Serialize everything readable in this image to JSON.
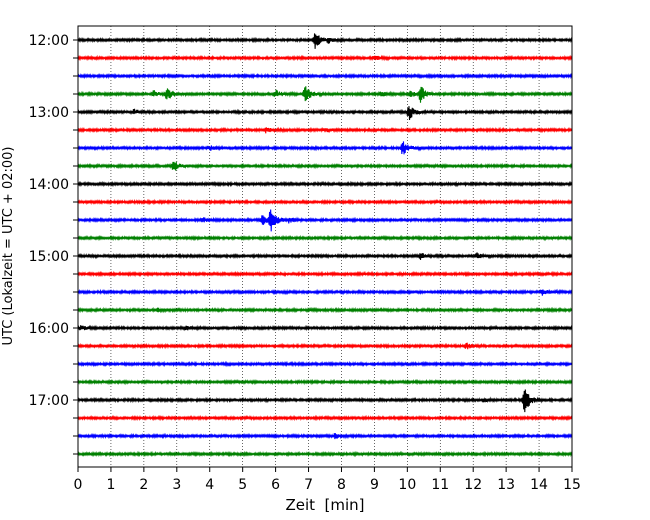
{
  "chart_data": {
    "type": "line",
    "title": "",
    "xlabel": "Zeit  [min]",
    "ylabel": "UTC (Lokalzeit = UTC + 02:00)",
    "xlim": [
      0,
      15
    ],
    "x_ticks": [
      "0",
      "1",
      "2",
      "3",
      "4",
      "5",
      "6",
      "7",
      "8",
      "9",
      "10",
      "11",
      "12",
      "13",
      "14",
      "15"
    ],
    "y_tick_labels": [
      "12:00",
      "13:00",
      "14:00",
      "15:00",
      "16:00",
      "17:00"
    ],
    "grid": "vertical dotted",
    "trace_colors": [
      "#000000",
      "#ff0000",
      "#0000ff",
      "#008000"
    ],
    "trace_start_times": [
      "12:00",
      "12:15",
      "12:30",
      "12:45",
      "13:00",
      "13:15",
      "13:30",
      "13:45",
      "14:00",
      "14:15",
      "14:30",
      "14:45",
      "15:00",
      "15:15",
      "15:30",
      "15:45",
      "16:00",
      "16:15",
      "16:30",
      "16:45",
      "17:00",
      "17:15",
      "17:30",
      "17:45"
    ],
    "series": [
      {
        "start": "12:00",
        "events": [
          {
            "t": 7.2,
            "amp": 1.0
          },
          {
            "t": 7.6,
            "amp": 0.3
          }
        ]
      },
      {
        "start": "12:15",
        "events": [
          {
            "t": 9.0,
            "amp": 0.25
          }
        ]
      },
      {
        "start": "12:30",
        "events": []
      },
      {
        "start": "12:45",
        "events": [
          {
            "t": 2.3,
            "amp": 0.4
          },
          {
            "t": 2.7,
            "amp": 0.9
          },
          {
            "t": 6.0,
            "amp": 0.5
          },
          {
            "t": 6.9,
            "amp": 1.0
          },
          {
            "t": 9.2,
            "amp": 0.3
          },
          {
            "t": 10.1,
            "amp": 0.4
          },
          {
            "t": 10.4,
            "amp": 1.0
          }
        ]
      },
      {
        "start": "13:00",
        "events": [
          {
            "t": 1.7,
            "amp": 0.3
          },
          {
            "t": 10.05,
            "amp": 1.0
          }
        ]
      },
      {
        "start": "13:15",
        "events": [
          {
            "t": 5.7,
            "amp": 0.3
          },
          {
            "t": 7.5,
            "amp": 0.3
          }
        ]
      },
      {
        "start": "13:30",
        "events": [
          {
            "t": 4.0,
            "amp": 0.3
          },
          {
            "t": 9.85,
            "amp": 1.0
          }
        ]
      },
      {
        "start": "13:45",
        "events": [
          {
            "t": 2.9,
            "amp": 0.7
          }
        ]
      },
      {
        "start": "14:00",
        "events": []
      },
      {
        "start": "14:15",
        "events": []
      },
      {
        "start": "14:30",
        "events": [
          {
            "t": 3.8,
            "amp": 0.25
          },
          {
            "t": 5.6,
            "amp": 0.6
          },
          {
            "t": 5.85,
            "amp": 1.6
          },
          {
            "t": 6.4,
            "amp": 0.3
          }
        ]
      },
      {
        "start": "14:45",
        "events": []
      },
      {
        "start": "15:00",
        "events": [
          {
            "t": 10.4,
            "amp": 0.4
          },
          {
            "t": 12.1,
            "amp": 0.35
          }
        ]
      },
      {
        "start": "15:15",
        "events": []
      },
      {
        "start": "15:30",
        "events": [
          {
            "t": 14.1,
            "amp": 0.4
          }
        ]
      },
      {
        "start": "15:45",
        "events": [
          {
            "t": 2.4,
            "amp": 0.25
          }
        ]
      },
      {
        "start": "16:00",
        "events": [
          {
            "t": 0.1,
            "amp": 0.3
          },
          {
            "t": 3.3,
            "amp": 0.25
          }
        ]
      },
      {
        "start": "16:15",
        "events": [
          {
            "t": 11.8,
            "amp": 0.35
          }
        ]
      },
      {
        "start": "16:30",
        "events": []
      },
      {
        "start": "16:45",
        "events": []
      },
      {
        "start": "17:00",
        "events": [
          {
            "t": 12.3,
            "amp": 0.2
          },
          {
            "t": 13.55,
            "amp": 1.7
          }
        ]
      },
      {
        "start": "17:15",
        "events": []
      },
      {
        "start": "17:30",
        "events": [
          {
            "t": 7.8,
            "amp": 0.3
          }
        ]
      },
      {
        "start": "17:45",
        "events": []
      }
    ]
  }
}
